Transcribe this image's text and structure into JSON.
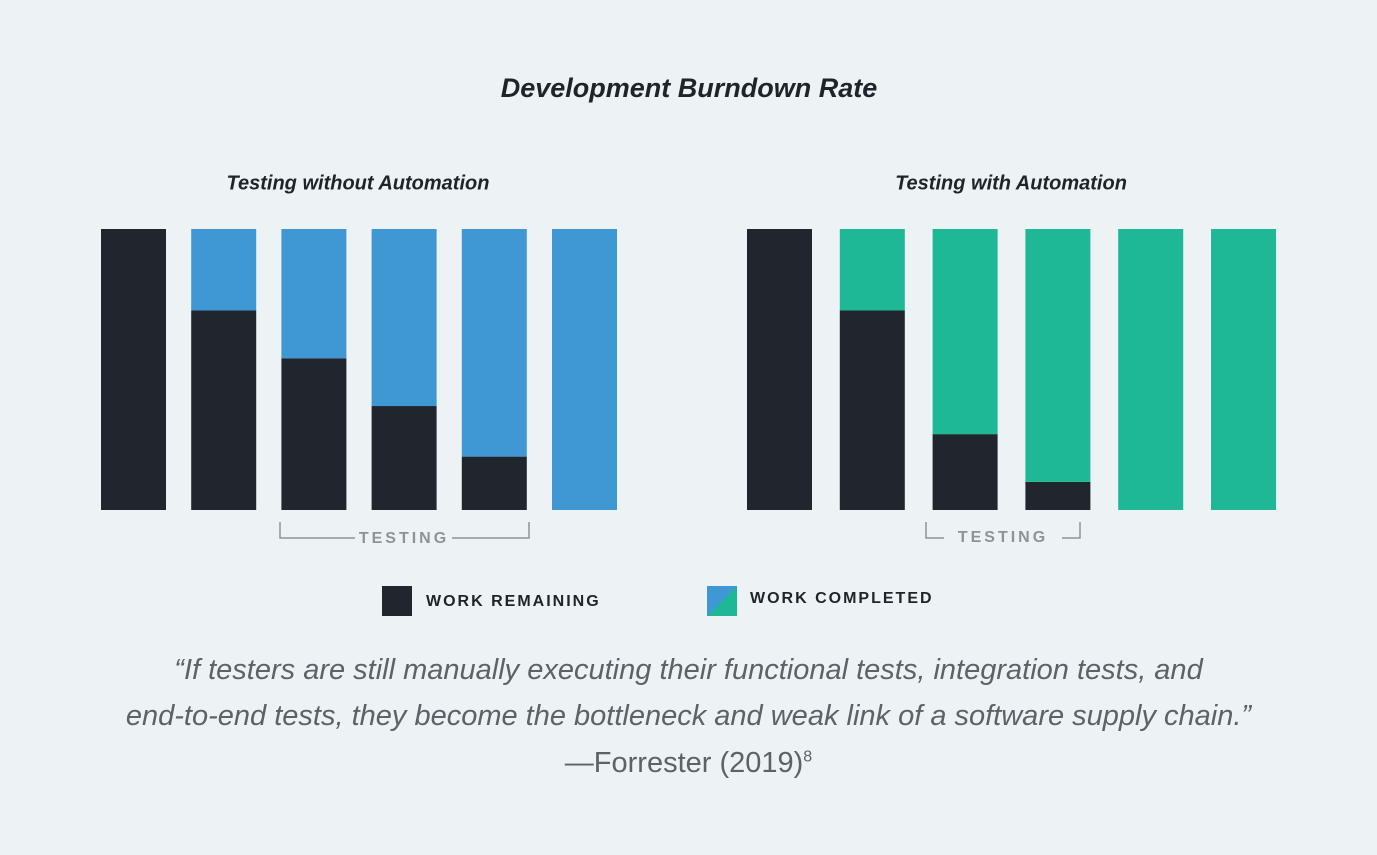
{
  "title": "Development Burndown Rate",
  "chart_data": [
    {
      "type": "bar",
      "stacked": true,
      "title": "Testing without Automation",
      "ylim": [
        0,
        100
      ],
      "annotation": "TESTING",
      "series": [
        {
          "color": "#20252e",
          "values": [
            100,
            71,
            54,
            37,
            19,
            0
          ]
        },
        {
          "color": "#3f97d4",
          "values": [
            0,
            29,
            46,
            63,
            81,
            100
          ]
        }
      ]
    },
    {
      "type": "bar",
      "stacked": true,
      "title": "Testing with Automation",
      "ylim": [
        0,
        100
      ],
      "annotation": "TESTING",
      "series": [
        {
          "color": "#20252e",
          "values": [
            100,
            71,
            27,
            10,
            0,
            0
          ]
        },
        {
          "color": "#1eb896",
          "values": [
            0,
            29,
            73,
            90,
            100,
            100
          ]
        }
      ]
    }
  ],
  "legend": [
    "WORK REMAINING",
    "WORK COMPLETED"
  ],
  "quote": [
    "“If testers are still manually executing their functional tests, integration tests, and",
    "end-to-end tests, they become the bottleneck and weak link of a software supply chain.”"
  ],
  "attribution": "—Forrester (2019)",
  "footnote": "8"
}
